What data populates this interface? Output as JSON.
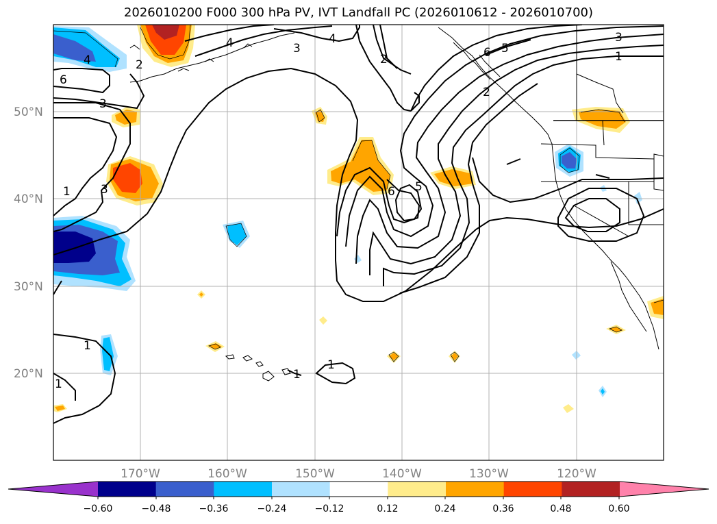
{
  "title": "2026010200 F000 300 hPa PV, IVT Landfall PC (2026010612 - 2026010700)",
  "lat_labels": [
    "50°N",
    "40°N",
    "30°N",
    "20°N"
  ],
  "lon_labels": [
    "170°W",
    "160°W",
    "150°W",
    "140°W",
    "130°W",
    "120°W"
  ],
  "contour_labels": [
    "4",
    "2",
    "6",
    "3",
    "1",
    "3",
    "4",
    "3",
    "4",
    "2",
    "6",
    "5",
    "3",
    "1",
    "2",
    "6",
    "5",
    "1",
    "1",
    "1",
    "1"
  ],
  "colorbar": {
    "ticks": [
      "−0.60",
      "−0.48",
      "−0.36",
      "−0.24",
      "−0.12",
      "0.12",
      "0.24",
      "0.36",
      "0.48",
      "0.60"
    ],
    "colors": [
      "#9932cc",
      "#00008b",
      "#3a5fcd",
      "#00bfff",
      "#b0e2ff",
      "#ffffff",
      "#ffec8b",
      "#ffa500",
      "#ff4500",
      "#b22222",
      "#ff82ab"
    ]
  },
  "colors": {
    "neg_strong": "#00008b",
    "neg_mid": "#3a5fcd",
    "neg_light": "#00bfff",
    "neg_faint": "#b0e2ff",
    "pos_faint": "#ffec8b",
    "pos_light": "#ffa500",
    "pos_mid": "#ff4500",
    "pos_strong": "#b22222"
  }
}
